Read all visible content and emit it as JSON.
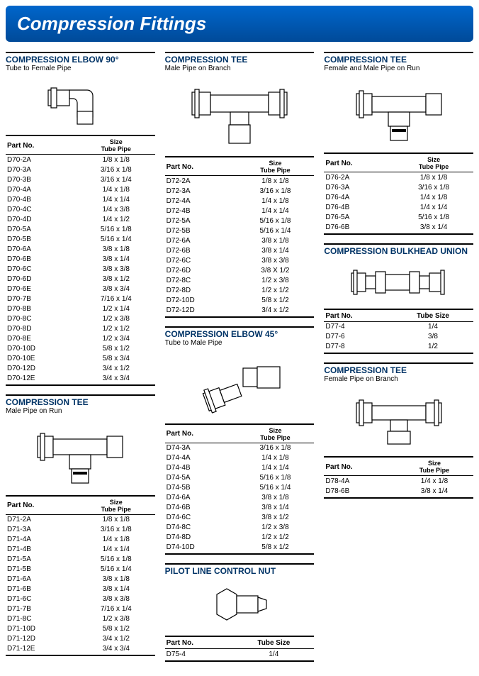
{
  "header_title": "Compression Fittings",
  "colors": {
    "header_bg_top": "#0066cc",
    "header_bg_bot": "#004a99",
    "title_color": "#003366",
    "rule": "#000000"
  },
  "columns": [
    {
      "sections": [
        {
          "title": "COMPRESSION ELBOW 90°",
          "sub": "Tube to Female Pipe",
          "illus": "elbow90",
          "head_part": "Part No.",
          "head_size": "Size",
          "head_size2": "Tube Pipe",
          "rows": [
            {
              "p": "D70-2A",
              "s": "1/8 x 1/8"
            },
            {
              "p": "D70-3A",
              "s": "3/16 x 1/8"
            },
            {
              "p": "D70-3B",
              "s": "3/16 x 1/4"
            },
            {
              "p": "D70-4A",
              "s": "1/4 x 1/8"
            },
            {
              "p": "D70-4B",
              "s": "1/4 x 1/4"
            },
            {
              "p": "D70-4C",
              "s": "1/4 x 3/8"
            },
            {
              "p": "D70-4D",
              "s": "1/4 x 1/2"
            },
            {
              "p": "D70-5A",
              "s": "5/16 x 1/8"
            },
            {
              "p": "D70-5B",
              "s": "5/16 x 1/4"
            },
            {
              "p": "D70-6A",
              "s": "3/8 x 1/8"
            },
            {
              "p": "D70-6B",
              "s": "3/8 x 1/4"
            },
            {
              "p": "D70-6C",
              "s": "3/8 x 3/8"
            },
            {
              "p": "D70-6D",
              "s": "3/8 x 1/2"
            },
            {
              "p": "D70-6E",
              "s": "3/8 x 3/4"
            },
            {
              "p": "D70-7B",
              "s": "7/16 x 1/4"
            },
            {
              "p": "D70-8B",
              "s": "1/2 x 1/4"
            },
            {
              "p": "D70-8C",
              "s": "1/2 x 3/8"
            },
            {
              "p": "D70-8D",
              "s": "1/2 x 1/2"
            },
            {
              "p": "D70-8E",
              "s": "1/2 x 3/4"
            },
            {
              "p": "D70-10D",
              "s": "5/8 x 1/2"
            },
            {
              "p": "D70-10E",
              "s": "5/8 x 3/4"
            },
            {
              "p": "D70-12D",
              "s": "3/4 x 1/2"
            },
            {
              "p": "D70-12E",
              "s": "3/4 x 3/4"
            }
          ]
        },
        {
          "title": "COMPRESSION TEE",
          "sub": "Male Pipe on Run",
          "illus": "tee-male-run",
          "head_part": "Part No.",
          "head_size": "Size",
          "head_size2": "Tube Pipe",
          "rows": [
            {
              "p": "D71-2A",
              "s": "1/8 x 1/8"
            },
            {
              "p": "D71-3A",
              "s": "3/16 x 1/8"
            },
            {
              "p": "D71-4A",
              "s": "1/4 x 1/8"
            },
            {
              "p": "D71-4B",
              "s": "1/4 x 1/4"
            },
            {
              "p": "D71-5A",
              "s": "5/16 x 1/8"
            },
            {
              "p": "D71-5B",
              "s": "5/16 x 1/4"
            },
            {
              "p": "D71-6A",
              "s": "3/8 x 1/8"
            },
            {
              "p": "D71-6B",
              "s": "3/8 x 1/4"
            },
            {
              "p": "D71-6C",
              "s": "3/8 x 3/8"
            },
            {
              "p": "D71-7B",
              "s": "7/16 x 1/4"
            },
            {
              "p": "D71-8C",
              "s": "1/2 x 3/8"
            },
            {
              "p": "D71-10D",
              "s": "5/8 x 1/2"
            },
            {
              "p": "D71-12D",
              "s": "3/4 x 1/2"
            },
            {
              "p": "D71-12E",
              "s": "3/4 x 3/4"
            }
          ]
        }
      ]
    },
    {
      "sections": [
        {
          "title": "COMPRESSION TEE",
          "sub": "Male Pipe on Branch",
          "illus": "tee-male-branch",
          "head_part": "Part No.",
          "head_size": "Size",
          "head_size2": "Tube Pipe",
          "rows": [
            {
              "p": "D72-2A",
              "s": "1/8 x 1/8"
            },
            {
              "p": "D72-3A",
              "s": "3/16 x 1/8"
            },
            {
              "p": "D72-4A",
              "s": "1/4 x 1/8"
            },
            {
              "p": "D72-4B",
              "s": "1/4 x 1/4"
            },
            {
              "p": "D72-5A",
              "s": "5/16 x 1/8"
            },
            {
              "p": "D72-5B",
              "s": "5/16 x 1/4"
            },
            {
              "p": "D72-6A",
              "s": "3/8 x 1/8"
            },
            {
              "p": "D72-6B",
              "s": "3/8 x 1/4"
            },
            {
              "p": "D72-6C",
              "s": "3/8 x 3/8"
            },
            {
              "p": "D72-6D",
              "s": "3/8 X 1/2"
            },
            {
              "p": "D72-8C",
              "s": "1/2 x 3/8"
            },
            {
              "p": "D72-8D",
              "s": "1/2 x 1/2"
            },
            {
              "p": "D72-10D",
              "s": "5/8 x 1/2"
            },
            {
              "p": "D72-12D",
              "s": "3/4 x 1/2"
            }
          ]
        },
        {
          "title": "COMPRESSION ELBOW 45°",
          "sub": "Tube to Male Pipe",
          "illus": "elbow45",
          "head_part": "Part No.",
          "head_size": "Size",
          "head_size2": "Tube Pipe",
          "rows": [
            {
              "p": "D74-3A",
              "s": "3/16 x 1/8"
            },
            {
              "p": "D74-4A",
              "s": "1/4 x 1/8"
            },
            {
              "p": "D74-4B",
              "s": "1/4 x 1/4"
            },
            {
              "p": "D74-5A",
              "s": "5/16 x 1/8"
            },
            {
              "p": "D74-5B",
              "s": "5/16 x 1/4"
            },
            {
              "p": "D74-6A",
              "s": "3/8 x 1/8"
            },
            {
              "p": "D74-6B",
              "s": "3/8 x 1/4"
            },
            {
              "p": "D74-6C",
              "s": "3/8 x 1/2"
            },
            {
              "p": "D74-8C",
              "s": "1/2 x 3/8"
            },
            {
              "p": "D74-8D",
              "s": "1/2 x 1/2"
            },
            {
              "p": "D74-10D",
              "s": "5/8 x 1/2"
            }
          ]
        },
        {
          "title": "PILOT LINE CONTROL NUT",
          "sub": "",
          "illus": "pilot-nut",
          "head_part": "Part No.",
          "head_size": "Tube Size",
          "head_size2": "",
          "rows": [
            {
              "p": "D75-4",
              "s": "1/4"
            }
          ]
        }
      ]
    },
    {
      "sections": [
        {
          "title": "COMPRESSION TEE",
          "sub": "Female and Male Pipe on Run",
          "illus": "tee-fm-run",
          "head_part": "Part No.",
          "head_size": "Size",
          "head_size2": "Tube Pipe",
          "rows": [
            {
              "p": "D76-2A",
              "s": "1/8 x 1/8"
            },
            {
              "p": "D76-3A",
              "s": "3/16 x 1/8"
            },
            {
              "p": "D76-4A",
              "s": "1/4 x 1/8"
            },
            {
              "p": "D76-4B",
              "s": "1/4 x 1/4"
            },
            {
              "p": "D76-5A",
              "s": "5/16 x 1/8"
            },
            {
              "p": "D76-6B",
              "s": "3/8 x 1/4"
            }
          ]
        },
        {
          "title": "COMPRESSION BULKHEAD UNION",
          "sub": "",
          "illus": "bulkhead",
          "head_part": "Part No.",
          "head_size": "Tube Size",
          "head_size2": "",
          "rows": [
            {
              "p": "D77-4",
              "s": "1/4"
            },
            {
              "p": "D77-6",
              "s": "3/8"
            },
            {
              "p": "D77-8",
              "s": "1/2"
            }
          ]
        },
        {
          "title": "COMPRESSION TEE",
          "sub": "Female Pipe on Branch",
          "illus": "tee-f-branch",
          "head_part": "Part No.",
          "head_size": "Size",
          "head_size2": "Tube Pipe",
          "rows": [
            {
              "p": "D78-4A",
              "s": "1/4 x 1/8"
            },
            {
              "p": "D78-6B",
              "s": "3/8 x 1/4"
            }
          ]
        }
      ]
    }
  ]
}
